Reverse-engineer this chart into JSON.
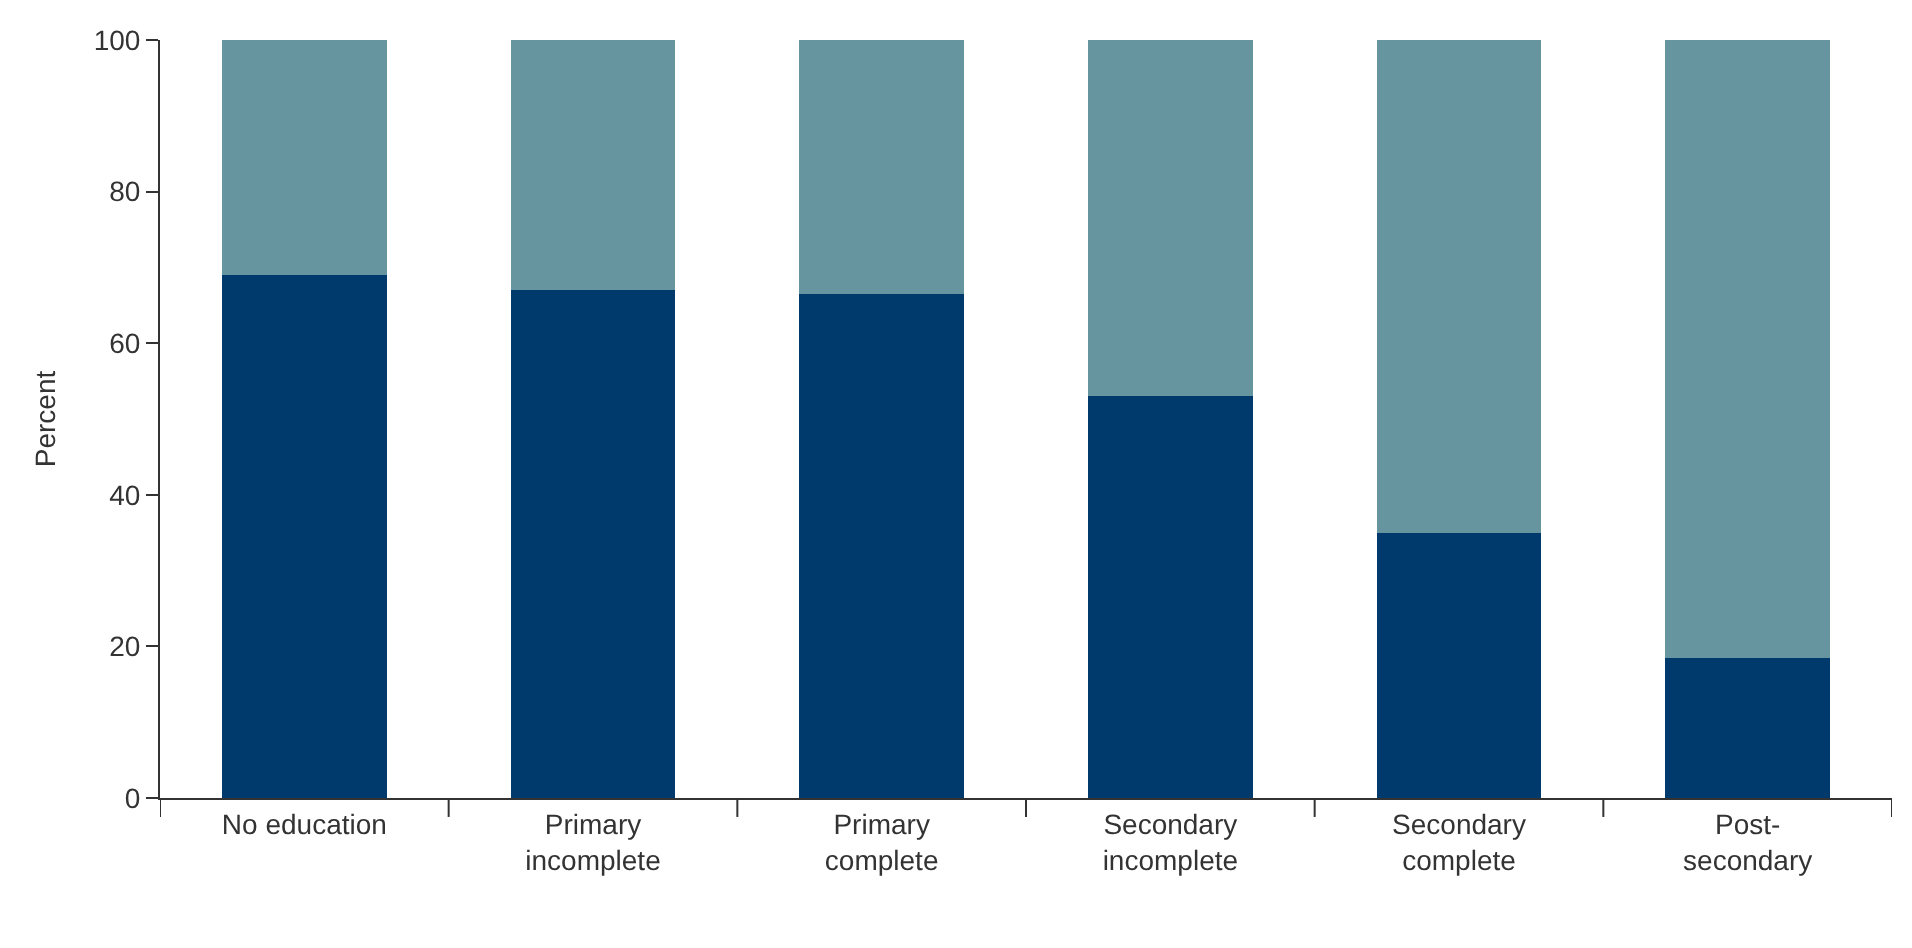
{
  "chart_data": {
    "type": "bar",
    "stacked": true,
    "ylabel": "Percent",
    "categories": [
      "No education",
      "Primary\nincomplete",
      "Primary\ncomplete",
      "Secondary\nincomplete",
      "Secondary\ncomplete",
      "Post-\nsecondary"
    ],
    "series": [
      {
        "color": "#003a6c",
        "values": [
          69,
          67,
          66.5,
          53,
          35,
          18.5
        ]
      },
      {
        "color": "#66949f",
        "values": [
          31,
          33,
          33.5,
          47,
          65,
          81.5
        ]
      }
    ],
    "ylim": [
      0,
      100
    ],
    "yticks": [
      0,
      20,
      40,
      60,
      80,
      100
    ]
  }
}
